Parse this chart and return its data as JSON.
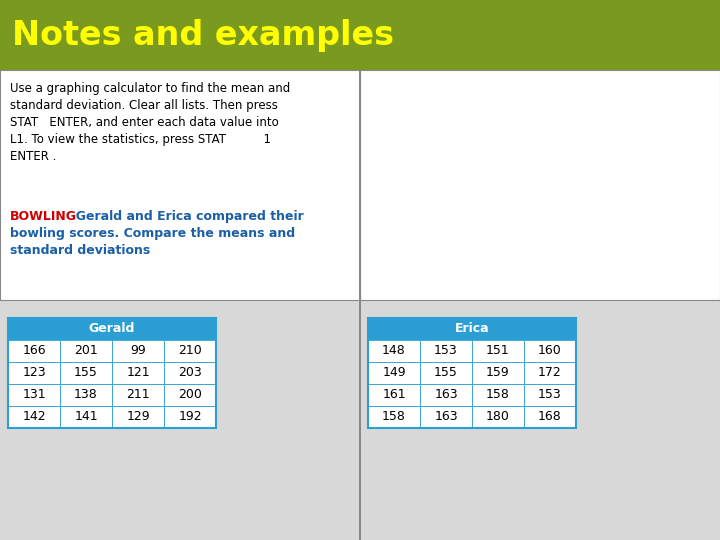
{
  "title": "Notes and examples",
  "title_bg_color": "#7a9a1f",
  "title_text_color": "#ffff00",
  "title_fontsize": 24,
  "body_bg_color": "#ffffff",
  "text_line1": "Use a graphing calculator to find the mean and",
  "text_line2": "standard deviation. Clear all lists. Then press",
  "text_line3": "STAT   ENTER, and enter each data value into",
  "text_line4": "L1. To view the statistics, press STAT          1",
  "text_line5": "ENTER .",
  "bowling_label": "BOWLING",
  "bowling_label_color": "#cc0000",
  "bowling_text_line1": "  Gerald and Erica compared their",
  "bowling_text_line2": "bowling scores. Compare the means and",
  "bowling_text_line3": "standard deviations",
  "bowling_text_color": "#1a5fa8",
  "table_header_bg": "#2b9fd4",
  "table_header_text": "#ffffff",
  "table_border_color": "#2b9fd4",
  "gerald_header": "Gerald",
  "erica_header": "Erica",
  "gerald_data": [
    [
      166,
      201,
      99,
      210
    ],
    [
      123,
      155,
      121,
      203
    ],
    [
      131,
      138,
      211,
      200
    ],
    [
      142,
      141,
      129,
      192
    ]
  ],
  "erica_data": [
    [
      148,
      153,
      151,
      160
    ],
    [
      149,
      155,
      159,
      172
    ],
    [
      161,
      163,
      158,
      153
    ],
    [
      158,
      163,
      180,
      168
    ]
  ],
  "divider_color": "#888888",
  "cell_bg_color": "#ffffff",
  "cell_text_color": "#000000",
  "bottom_bg": "#d8d8d8"
}
